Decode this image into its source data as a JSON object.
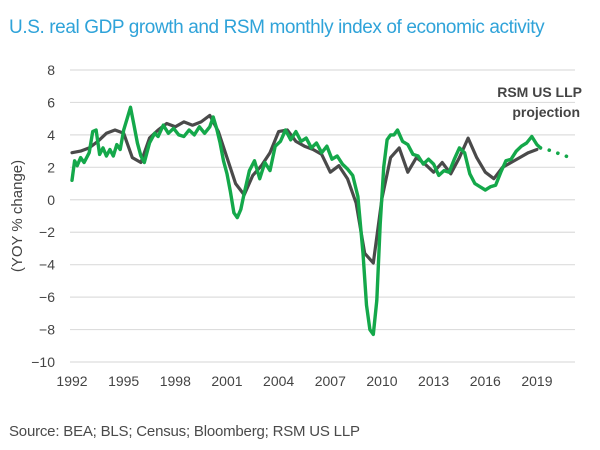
{
  "title": "U.S. real GDP growth and RSM monthly index of economic activity",
  "source": "Source: BEA; BLS; Census; Bloomberg; RSM US LLP",
  "colors": {
    "title": "#2fa3d9",
    "gdp": "#4a4a4a",
    "rsm": "#14a84a",
    "grid": "#dddddd"
  },
  "chart_data": {
    "type": "line",
    "title": "U.S. real GDP growth and RSM monthly index of economic activity",
    "xlabel": "",
    "ylabel": "(YOY % change)",
    "xlim": [
      1992,
      2021.2
    ],
    "ylim": [
      -10,
      8
    ],
    "yticks": [
      8,
      6,
      4,
      2,
      0,
      -2,
      -4,
      -6,
      -8,
      -10
    ],
    "xticks": [
      "1992",
      "1995",
      "1998",
      "2001",
      "2004",
      "2007",
      "2010",
      "2013",
      "2016",
      "2019"
    ],
    "grid": true,
    "annotation": {
      "lines": [
        "RSM US LLP",
        "projection"
      ],
      "position": "top-right"
    },
    "series": [
      {
        "name": "U.S. real GDP growth",
        "style": "solid",
        "x": [
          1992.0,
          1992.5,
          1993.0,
          1993.5,
          1994.0,
          1994.5,
          1995.0,
          1995.5,
          1996.0,
          1996.5,
          1997.0,
          1997.5,
          1998.0,
          1998.5,
          1999.0,
          1999.5,
          2000.0,
          2000.5,
          2001.0,
          2001.5,
          2002.0,
          2002.5,
          2003.0,
          2003.5,
          2004.0,
          2004.5,
          2005.0,
          2005.5,
          2006.0,
          2006.5,
          2007.0,
          2007.5,
          2008.0,
          2008.5,
          2009.0,
          2009.5,
          2010.0,
          2010.5,
          2011.0,
          2011.5,
          2012.0,
          2012.5,
          2013.0,
          2013.5,
          2014.0,
          2014.5,
          2015.0,
          2015.5,
          2016.0,
          2016.5,
          2017.0,
          2017.5,
          2018.0,
          2018.5,
          2019.0
        ],
        "values": [
          2.9,
          3.0,
          3.2,
          3.6,
          4.1,
          4.3,
          4.1,
          2.6,
          2.3,
          3.8,
          4.3,
          4.7,
          4.5,
          4.8,
          4.6,
          4.8,
          5.2,
          4.2,
          2.6,
          1.0,
          0.3,
          1.5,
          2.1,
          2.9,
          4.2,
          4.3,
          3.6,
          3.3,
          3.1,
          2.8,
          1.7,
          2.1,
          1.3,
          -0.2,
          -3.3,
          -3.9,
          0.1,
          2.6,
          3.2,
          1.7,
          2.6,
          2.2,
          1.7,
          2.3,
          1.6,
          2.6,
          3.8,
          2.6,
          1.7,
          1.3,
          2.0,
          2.3,
          2.6,
          2.9,
          3.1
        ]
      },
      {
        "name": "RSM monthly index of economic activity",
        "style": "solid",
        "x": [
          1992.0,
          1992.15,
          1992.3,
          1992.5,
          1992.7,
          1993.0,
          1993.2,
          1993.4,
          1993.6,
          1993.8,
          1994.0,
          1994.2,
          1994.4,
          1994.6,
          1994.8,
          1995.0,
          1995.2,
          1995.4,
          1995.6,
          1995.8,
          1996.0,
          1996.2,
          1996.5,
          1996.8,
          1997.0,
          1997.3,
          1997.6,
          1997.9,
          1998.2,
          1998.5,
          1998.8,
          1999.1,
          1999.4,
          1999.7,
          2000.0,
          2000.2,
          2000.4,
          2000.6,
          2000.8,
          2001.0,
          2001.2,
          2001.4,
          2001.6,
          2001.8,
          2002.0,
          2002.3,
          2002.6,
          2002.9,
          2003.2,
          2003.5,
          2003.8,
          2004.1,
          2004.4,
          2004.7,
          2005.0,
          2005.3,
          2005.6,
          2005.9,
          2006.2,
          2006.5,
          2006.8,
          2007.1,
          2007.4,
          2007.7,
          2008.0,
          2008.3,
          2008.6,
          2008.9,
          2009.1,
          2009.3,
          2009.5,
          2009.7,
          2009.9,
          2010.1,
          2010.3,
          2010.5,
          2010.7,
          2010.9,
          2011.2,
          2011.5,
          2011.8,
          2012.1,
          2012.4,
          2012.7,
          2013.0,
          2013.3,
          2013.6,
          2013.9,
          2014.2,
          2014.5,
          2014.8,
          2015.1,
          2015.4,
          2015.7,
          2016.0,
          2016.3,
          2016.6,
          2016.9,
          2017.2,
          2017.5,
          2017.8,
          2018.1,
          2018.4,
          2018.7,
          2019.0,
          2019.2
        ],
        "values": [
          1.2,
          2.4,
          2.1,
          2.6,
          2.3,
          2.9,
          4.2,
          4.3,
          2.8,
          3.2,
          2.7,
          3.1,
          2.7,
          3.4,
          3.1,
          4.3,
          5.0,
          5.7,
          4.6,
          3.5,
          2.7,
          2.3,
          3.5,
          4.1,
          3.9,
          4.6,
          4.1,
          4.4,
          4.0,
          3.9,
          4.3,
          4.0,
          4.5,
          4.1,
          4.5,
          5.1,
          4.4,
          3.5,
          2.4,
          1.6,
          0.5,
          -0.8,
          -1.1,
          -0.6,
          0.4,
          1.8,
          2.4,
          1.3,
          2.3,
          1.8,
          3.3,
          3.6,
          4.3,
          3.7,
          4.2,
          3.6,
          3.8,
          3.2,
          3.5,
          2.9,
          3.3,
          2.5,
          2.7,
          2.2,
          1.9,
          1.5,
          0.2,
          -3.3,
          -6.5,
          -8.0,
          -8.3,
          -6.2,
          -1.5,
          2.0,
          3.7,
          4.0,
          4.0,
          4.3,
          3.6,
          3.4,
          2.8,
          2.7,
          2.2,
          2.5,
          2.2,
          1.5,
          1.8,
          1.7,
          2.5,
          3.2,
          2.9,
          1.6,
          1.0,
          0.8,
          0.6,
          0.8,
          0.9,
          1.7,
          2.4,
          2.5,
          3.0,
          3.3,
          3.5,
          3.9,
          3.4,
          3.2
        ]
      },
      {
        "name": "RSM US LLP projection",
        "style": "dotted",
        "x": [
          2019.2,
          2019.6,
          2020.0,
          2020.4,
          2020.8,
          2021.2
        ],
        "values": [
          3.2,
          3.1,
          2.95,
          2.8,
          2.65,
          2.5
        ]
      }
    ]
  }
}
